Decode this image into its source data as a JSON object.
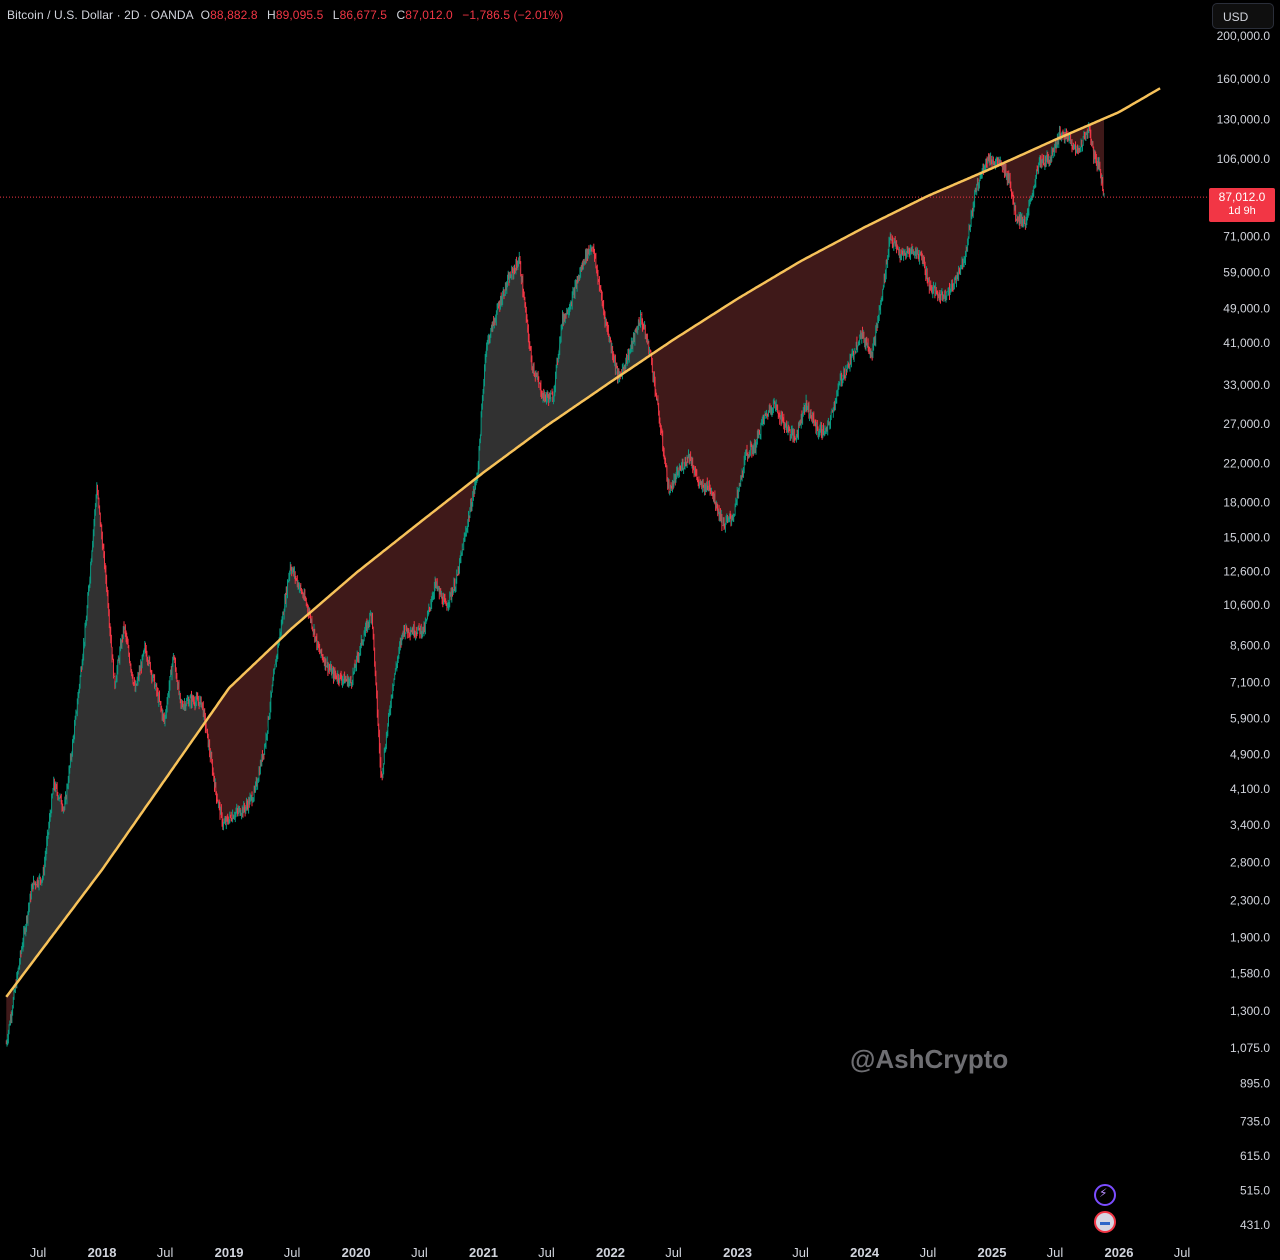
{
  "legend": {
    "symbol": "Bitcoin / U.S. Dollar · 2D · OANDA",
    "o_label": "O",
    "open": "88,882.8",
    "h_label": "H",
    "high": "89,095.5",
    "l_label": "L",
    "low": "86,677.5",
    "c_label": "C",
    "close": "87,012.0",
    "change": "−1,786.5 (−2.01%)"
  },
  "currency": "USD",
  "last_price": {
    "price": "87,012.0",
    "countdown": "1d 9h"
  },
  "watermark": "@AshCrypto",
  "colors": {
    "background": "#000000",
    "up_candle": "#089981",
    "down_candle": "#f23645",
    "curve": "#f7c25a",
    "fill_above": "#3a3a3a",
    "fill_below": "#4a1d1d",
    "price_line": "#f23645"
  },
  "toolbar_icons": [
    "lightning-icon",
    "flag-icon"
  ],
  "chart_data": {
    "type": "line",
    "scale": "log",
    "ylim": [
      431,
      200000
    ],
    "y_ticks": [
      "200,000.0",
      "160,000.0",
      "130,000.0",
      "106,000.0",
      "71,000.0",
      "59,000.0",
      "49,000.0",
      "41,000.0",
      "33,000.0",
      "27,000.0",
      "22,000.0",
      "18,000.0",
      "15,000.0",
      "12,600.0",
      "10,600.0",
      "8,600.0",
      "7,100.0",
      "5,900.0",
      "4,900.0",
      "4,100.0",
      "3,400.0",
      "2,800.0",
      "2,300.0",
      "1,900.0",
      "1,580.0",
      "1,300.0",
      "1,075.0",
      "895.0",
      "735.0",
      "615.0",
      "515.0",
      "431.0"
    ],
    "y_tick_values": [
      200000,
      160000,
      130000,
      106000,
      71000,
      59000,
      49000,
      41000,
      33000,
      27000,
      22000,
      18000,
      15000,
      12600,
      10600,
      8600,
      7100,
      5900,
      4900,
      4100,
      3400,
      2800,
      2300,
      1900,
      1580,
      1300,
      1075,
      895,
      735,
      615,
      515,
      431
    ],
    "x_ticks": [
      {
        "label": "Jul",
        "date": "2017-07-01",
        "year": false
      },
      {
        "label": "2018",
        "date": "2018-01-01",
        "year": true
      },
      {
        "label": "Jul",
        "date": "2018-07-01",
        "year": false
      },
      {
        "label": "2019",
        "date": "2019-01-01",
        "year": true
      },
      {
        "label": "Jul",
        "date": "2019-07-01",
        "year": false
      },
      {
        "label": "2020",
        "date": "2020-01-01",
        "year": true
      },
      {
        "label": "Jul",
        "date": "2020-07-01",
        "year": false
      },
      {
        "label": "2021",
        "date": "2021-01-01",
        "year": true
      },
      {
        "label": "Jul",
        "date": "2021-07-01",
        "year": false
      },
      {
        "label": "2022",
        "date": "2022-01-01",
        "year": true
      },
      {
        "label": "Jul",
        "date": "2022-07-01",
        "year": false
      },
      {
        "label": "2023",
        "date": "2023-01-01",
        "year": true
      },
      {
        "label": "Jul",
        "date": "2023-07-01",
        "year": false
      },
      {
        "label": "2024",
        "date": "2024-01-01",
        "year": true
      },
      {
        "label": "Jul",
        "date": "2024-07-01",
        "year": false
      },
      {
        "label": "2025",
        "date": "2025-01-01",
        "year": true
      },
      {
        "label": "Jul",
        "date": "2025-07-01",
        "year": false
      },
      {
        "label": "2026",
        "date": "2026-01-01",
        "year": true
      },
      {
        "label": "Jul",
        "date": "2026-07-01",
        "year": false
      }
    ],
    "series": [
      {
        "x": [
          "2017-04-01",
          "2017-05-15",
          "2017-06-15",
          "2017-07-15",
          "2017-08-15",
          "2017-09-15",
          "2017-10-15",
          "2017-11-15",
          "2017-12-17",
          "2018-01-15",
          "2018-02-06",
          "2018-03-05",
          "2018-04-06",
          "2018-05-05",
          "2018-06-29",
          "2018-07-25",
          "2018-08-15",
          "2018-09-15",
          "2018-10-15",
          "2018-11-25",
          "2018-12-15",
          "2019-01-15",
          "2019-02-15",
          "2019-03-15",
          "2019-04-15",
          "2019-05-15",
          "2019-06-26",
          "2019-08-15",
          "2019-09-15",
          "2019-10-26",
          "2019-12-17",
          "2020-01-20",
          "2020-02-15",
          "2020-03-13",
          "2020-04-15",
          "2020-05-15",
          "2020-07-15",
          "2020-08-15",
          "2020-09-15",
          "2020-10-15",
          "2020-11-15",
          "2020-12-15",
          "2021-01-08",
          "2021-02-15",
          "2021-03-15",
          "2021-04-14",
          "2021-05-19",
          "2021-06-22",
          "2021-07-20",
          "2021-08-15",
          "2021-09-07",
          "2021-10-20",
          "2021-11-10",
          "2021-12-15",
          "2022-01-24",
          "2022-02-24",
          "2022-03-29",
          "2022-04-25",
          "2022-05-15",
          "2022-06-18",
          "2022-07-15",
          "2022-08-15",
          "2022-09-15",
          "2022-10-15",
          "2022-11-21",
          "2022-12-20",
          "2023-01-25",
          "2023-02-20",
          "2023-03-15",
          "2023-04-15",
          "2023-05-15",
          "2023-06-15",
          "2023-07-15",
          "2023-08-20",
          "2023-09-15",
          "2023-10-25",
          "2023-11-20",
          "2023-12-20",
          "2024-01-23",
          "2024-02-20",
          "2024-03-14",
          "2024-04-15",
          "2024-05-15",
          "2024-06-15",
          "2024-07-05",
          "2024-08-05",
          "2024-09-06",
          "2024-10-15",
          "2024-11-15",
          "2024-12-17",
          "2025-01-20",
          "2025-02-20",
          "2025-03-10",
          "2025-04-08",
          "2025-05-15",
          "2025-06-15",
          "2025-07-14",
          "2025-08-14",
          "2025-09-01",
          "2025-10-06",
          "2025-10-20",
          "2025-11-05",
          "2025-11-20"
        ],
        "y": [
          1100,
          1800,
          2500,
          2600,
          4200,
          3700,
          5700,
          9500,
          19500,
          11500,
          7000,
          9500,
          6800,
          8500,
          5800,
          8200,
          6300,
          6500,
          6400,
          4000,
          3400,
          3600,
          3700,
          4000,
          5200,
          7900,
          13000,
          10500,
          8400,
          7400,
          7100,
          8900,
          10200,
          4300,
          7000,
          9300,
          9300,
          11800,
          10500,
          12000,
          16000,
          21000,
          40000,
          50000,
          57000,
          63000,
          37000,
          31000,
          31000,
          46000,
          50000,
          64000,
          68000,
          47000,
          34000,
          39000,
          47000,
          39000,
          30000,
          19000,
          21000,
          23000,
          19500,
          19500,
          16000,
          16800,
          23000,
          24000,
          27500,
          30000,
          27000,
          25000,
          30000,
          26000,
          26000,
          34000,
          37000,
          43000,
          39000,
          52000,
          71000,
          64000,
          66000,
          64000,
          55000,
          52000,
          54000,
          64000,
          90000,
          106000,
          104000,
          96000,
          79000,
          76000,
          103000,
          106000,
          120000,
          118000,
          109000,
          124000,
          108000,
          102000,
          87012
        ]
      },
      {
        "x": [
          "2017-04-01",
          "2018-01-01",
          "2018-07-01",
          "2019-01-01",
          "2019-07-01",
          "2020-01-01",
          "2020-07-01",
          "2021-01-01",
          "2021-07-01",
          "2022-01-01",
          "2022-07-01",
          "2023-01-01",
          "2023-07-01",
          "2024-01-01",
          "2024-07-01",
          "2025-01-01",
          "2025-07-01",
          "2026-01-01",
          "2026-05-01"
        ],
        "y": [
          1400,
          2700,
          4300,
          6900,
          9400,
          12500,
          16200,
          21000,
          26700,
          33500,
          41700,
          51500,
          62500,
          74500,
          87600,
          101000,
          117000,
          135000,
          153000
        ]
      }
    ]
  }
}
